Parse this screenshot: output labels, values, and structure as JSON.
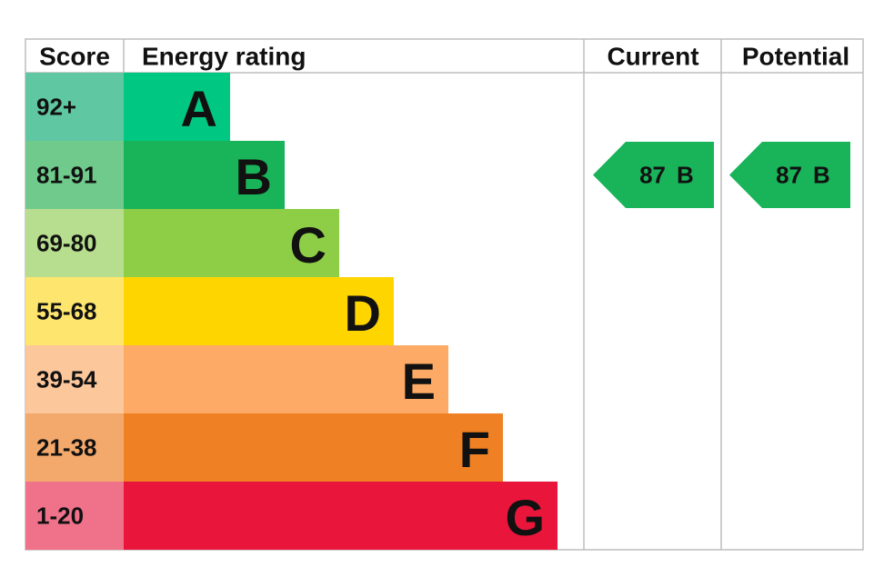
{
  "header": {
    "score": "Score",
    "rating": "Energy rating",
    "current": "Current",
    "potential": "Potential"
  },
  "bands": [
    {
      "score": "92+",
      "letter": "A",
      "color": "#00c781",
      "score_color": "#5fc8a2"
    },
    {
      "score": "81-91",
      "letter": "B",
      "color": "#19b459",
      "score_color": "#6fca8c"
    },
    {
      "score": "69-80",
      "letter": "C",
      "color": "#8dce46",
      "score_color": "#b7de8e"
    },
    {
      "score": "55-68",
      "letter": "D",
      "color": "#ffd500",
      "score_color": "#fee56e"
    },
    {
      "score": "39-54",
      "letter": "E",
      "color": "#fcaa65",
      "score_color": "#fdc79c"
    },
    {
      "score": "21-38",
      "letter": "F",
      "color": "#ef8023",
      "score_color": "#f3a96c"
    },
    {
      "score": "1-20",
      "letter": "G",
      "color": "#e9153b",
      "score_color": "#f0728a"
    }
  ],
  "current": {
    "value": 87,
    "letter": "B",
    "color": "#19b459"
  },
  "potential": {
    "value": 87,
    "letter": "B",
    "color": "#19b459"
  }
}
